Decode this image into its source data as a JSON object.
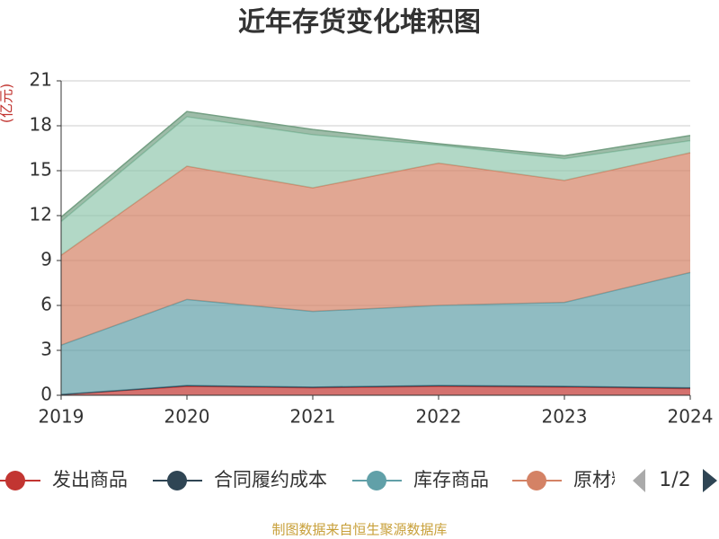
{
  "chart_data": {
    "type": "stacked_area",
    "title": "近年存货变化堆积图",
    "y_label": "(亿元)",
    "footer": "制图数据来自恒生聚源数据库",
    "legend_page": "1/2",
    "categories": [
      "2019",
      "2020",
      "2021",
      "2022",
      "2023",
      "2024"
    ],
    "ylim": [
      0,
      21
    ],
    "yticks": [
      0,
      3,
      6,
      9,
      12,
      15,
      18,
      21
    ],
    "grid": true,
    "series": [
      {
        "name": "发出商品",
        "color": "#c23531",
        "values": [
          0.05,
          0.6,
          0.5,
          0.6,
          0.55,
          0.45
        ]
      },
      {
        "name": "合同履约成本",
        "color": "#2f4554",
        "values": [
          0,
          0.05,
          0.05,
          0.05,
          0.05,
          0.05
        ]
      },
      {
        "name": "库存商品",
        "color": "#61a0a8",
        "values": [
          3.3,
          5.75,
          5.05,
          5.35,
          5.6,
          7.7
        ]
      },
      {
        "name": "原材料",
        "color": "#d48265",
        "values": [
          6.0,
          8.9,
          8.25,
          9.5,
          8.15,
          8.0
        ]
      },
      {
        "color": "#91c7ae",
        "values": [
          2.25,
          3.3,
          3.55,
          1.2,
          1.45,
          0.8
        ]
      },
      {
        "color": "#749f83",
        "values": [
          0.3,
          0.35,
          0.35,
          0.1,
          0.2,
          0.35
        ]
      }
    ]
  }
}
